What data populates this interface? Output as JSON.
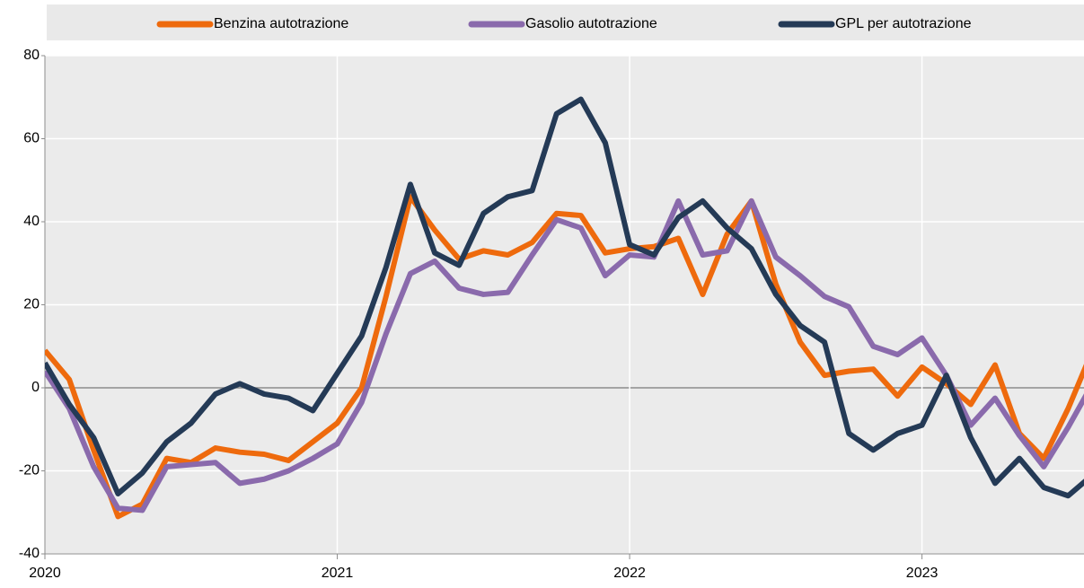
{
  "chart_data": {
    "type": "line",
    "x": [
      0,
      1,
      2,
      3,
      4,
      5,
      6,
      7,
      8,
      9,
      10,
      11,
      12,
      13,
      14,
      15,
      16,
      17,
      18,
      19,
      20,
      21,
      22,
      23,
      24,
      25,
      26,
      27,
      28,
      29,
      30,
      31,
      32,
      33,
      34,
      35,
      36,
      37,
      38,
      39,
      40,
      41,
      42,
      43
    ],
    "series": [
      {
        "name": "Benzina autotrazione",
        "color": "#ee6a0d",
        "values": [
          9,
          2,
          -15,
          -31,
          -28,
          -17,
          -18,
          -14.5,
          -15.5,
          -16,
          -17.5,
          -13,
          -8.5,
          0,
          22,
          46,
          38,
          31,
          33,
          32,
          35,
          42,
          41.5,
          32.5,
          33.5,
          34,
          36,
          22.5,
          37,
          45,
          25,
          11,
          3,
          4,
          4.5,
          -2,
          5,
          1,
          -4,
          5.5,
          -11,
          -17,
          -5,
          9
        ]
      },
      {
        "name": "Gasolio autotrazione",
        "color": "#8a6aac",
        "values": [
          4,
          -5,
          -19,
          -29,
          -29.5,
          -19,
          -18.5,
          -18,
          -23,
          -22,
          -20,
          -17,
          -13.5,
          -3.5,
          13,
          27.5,
          30.5,
          24,
          22.5,
          23,
          32,
          40.5,
          38.5,
          27,
          32,
          31.5,
          45,
          32,
          33,
          45,
          31.5,
          27,
          22,
          19.5,
          10,
          8,
          12,
          3,
          -9,
          -2.5,
          -11.5,
          -19,
          -9.5,
          1
        ]
      },
      {
        "name": "GPL per autotrazione",
        "color": "#243a56",
        "values": [
          6,
          -4,
          -12,
          -25.5,
          -20.5,
          -13,
          -8.5,
          -1.5,
          1,
          -1.5,
          -2.5,
          -5.5,
          3.5,
          12.5,
          29,
          49,
          32.5,
          29.5,
          42,
          46,
          47.5,
          66,
          69.5,
          59,
          34.5,
          32,
          41,
          45,
          38.5,
          33.5,
          22.5,
          15,
          11,
          -11,
          -15,
          -11,
          -9,
          3,
          -12,
          -23,
          -17,
          -24,
          -26,
          -21
        ]
      }
    ],
    "xlim": [
      0,
      42.65
    ],
    "xticks": [
      {
        "value": 0,
        "label": "2020"
      },
      {
        "value": 12,
        "label": "2021"
      },
      {
        "value": 24,
        "label": "2022"
      },
      {
        "value": 36,
        "label": "2023"
      }
    ],
    "ylim": [
      -40,
      80
    ],
    "yticks": [
      -40,
      -20,
      0,
      20,
      40,
      60,
      80
    ],
    "grid": true,
    "legend": "top"
  }
}
